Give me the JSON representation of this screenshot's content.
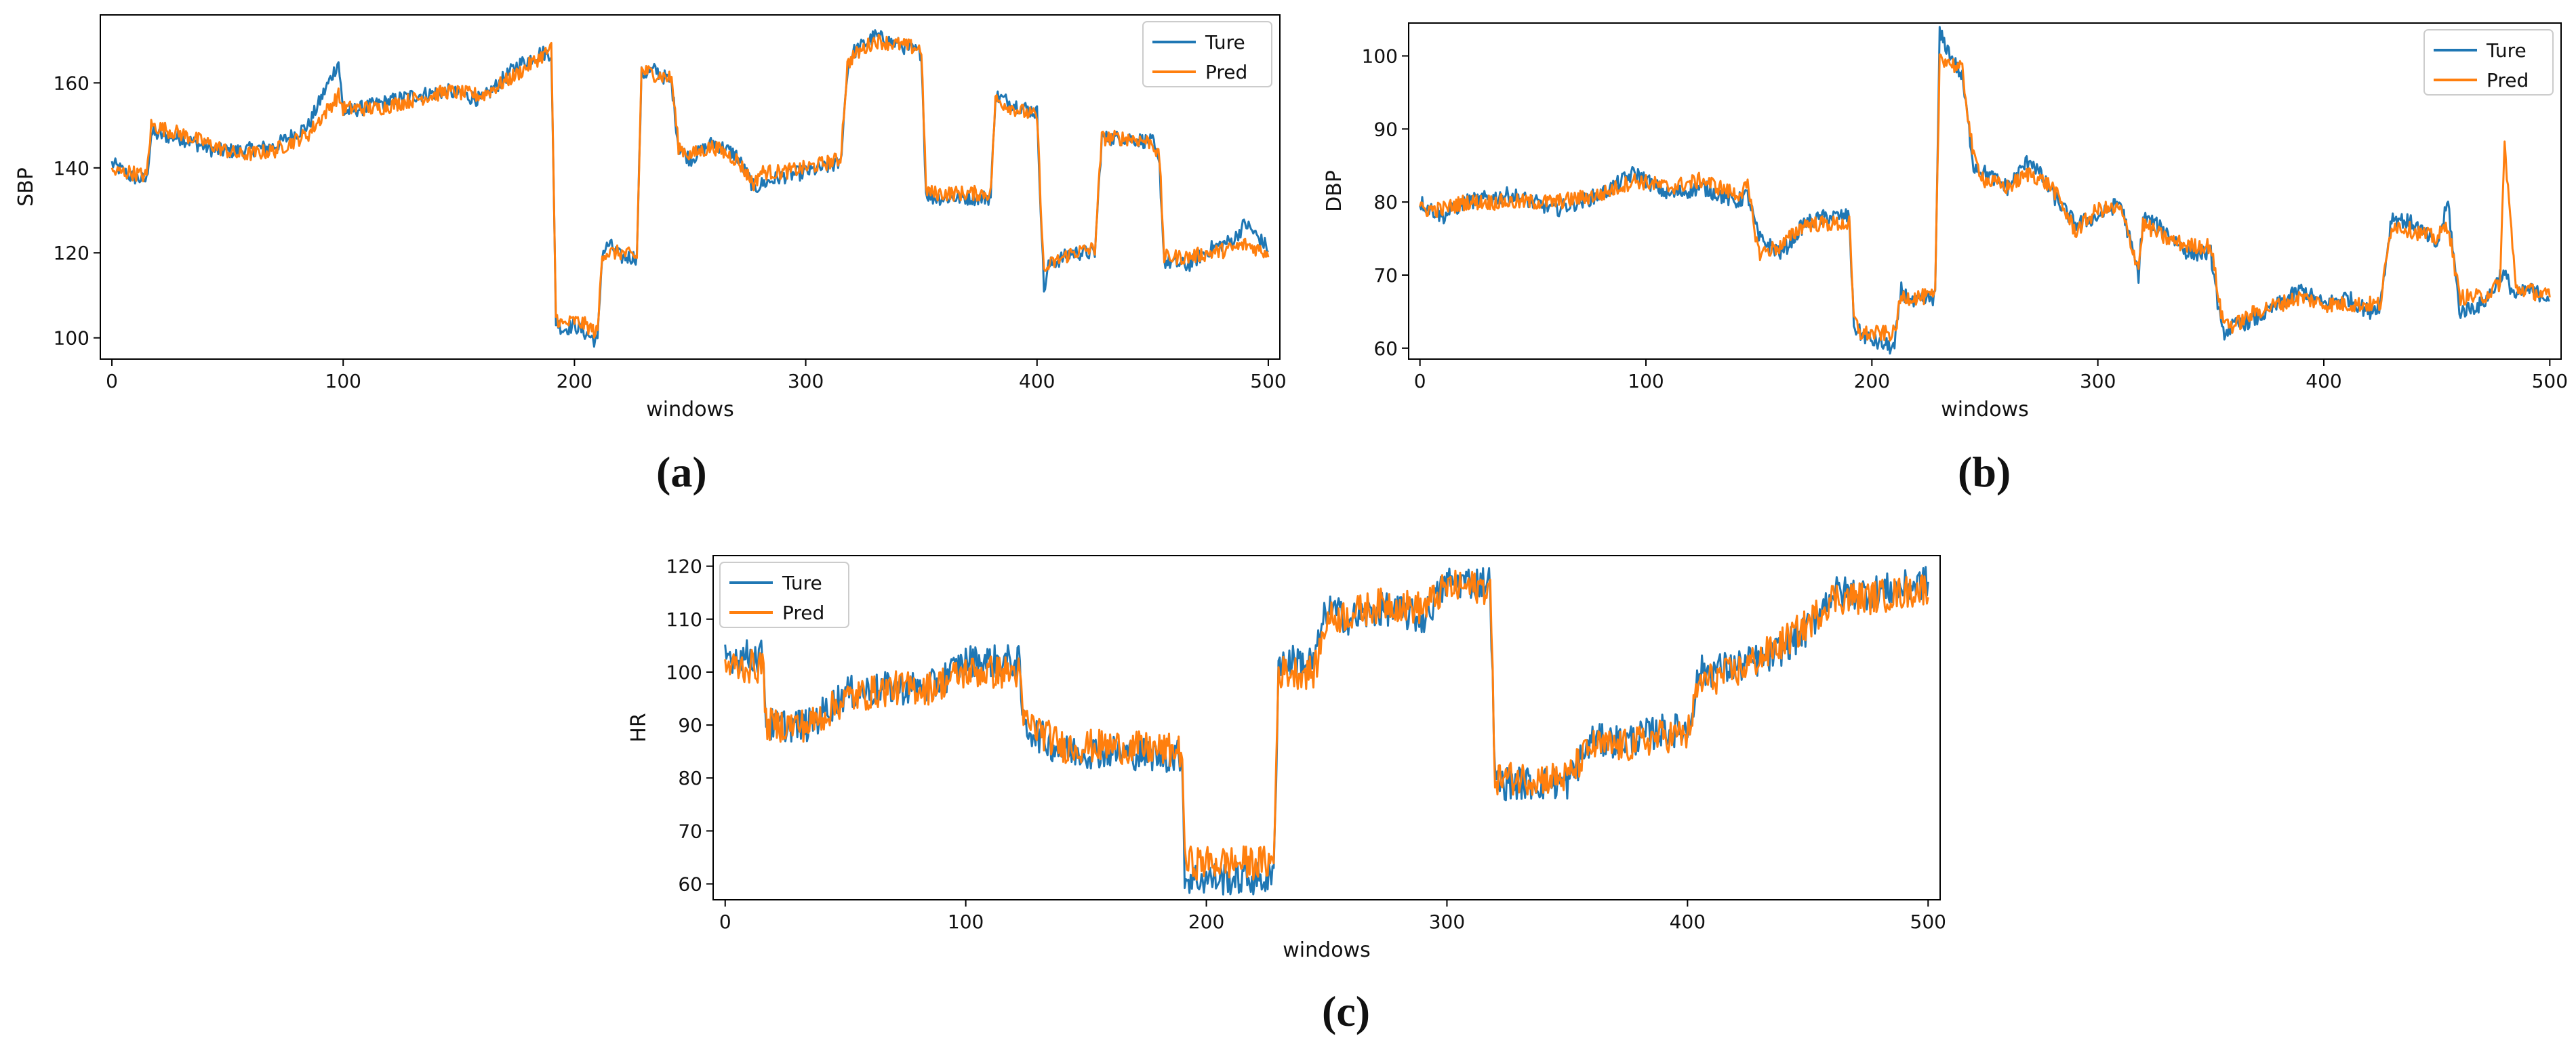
{
  "chart_data": [
    {
      "type": "line",
      "panel_label": "(a)",
      "xlabel": "windows",
      "ylabel": "SBP",
      "xlim": [
        -5,
        505
      ],
      "ylim": [
        95,
        176
      ],
      "xticks": [
        0,
        100,
        200,
        300,
        400,
        500
      ],
      "yticks": [
        100,
        120,
        140,
        160
      ],
      "legend_position": "top-right",
      "x": [
        0,
        8,
        15,
        17,
        30,
        45,
        55,
        70,
        85,
        98,
        100,
        115,
        130,
        145,
        160,
        175,
        185,
        190,
        192,
        195,
        200,
        205,
        210,
        212,
        215,
        220,
        227,
        229,
        235,
        242,
        245,
        250,
        260,
        270,
        278,
        280,
        290,
        300,
        315,
        318,
        320,
        330,
        340,
        350,
        352,
        355,
        365,
        375,
        380,
        382,
        390,
        400,
        403,
        405,
        415,
        425,
        428,
        440,
        450,
        453,
        455,
        465,
        475,
        485,
        490,
        500
      ],
      "series": [
        {
          "name": "Ture",
          "color": "#1f77b4",
          "values": [
            141,
            138,
            137,
            148,
            147,
            144,
            144,
            145,
            150,
            165,
            153,
            155,
            157,
            158,
            156,
            164,
            167,
            167,
            104,
            102,
            103,
            101,
            99,
            120,
            122,
            119,
            119,
            162,
            163,
            160,
            145,
            142,
            146,
            143,
            135,
            136,
            138,
            139,
            141,
            163,
            167,
            171,
            169,
            167,
            134,
            133,
            133,
            133,
            133,
            157,
            155,
            153,
            111,
            117,
            120,
            120,
            147,
            147,
            146,
            140,
            118,
            117,
            121,
            123,
            127,
            121
          ]
        },
        {
          "name": "Pred",
          "color": "#ff7f0e",
          "values": [
            139,
            139,
            138,
            150,
            148,
            145,
            143,
            144,
            148,
            157,
            154,
            154,
            156,
            158,
            157,
            162,
            166,
            168,
            105,
            103,
            104,
            103,
            101,
            120,
            120,
            120,
            119,
            163,
            162,
            161,
            145,
            143,
            145,
            142,
            136,
            139,
            139,
            140,
            142,
            164,
            166,
            170,
            169,
            168,
            135,
            134,
            134,
            134,
            134,
            156,
            154,
            152,
            115,
            117,
            120,
            121,
            147,
            147,
            146,
            142,
            119,
            119,
            120,
            121,
            122,
            120
          ]
        }
      ]
    },
    {
      "type": "line",
      "panel_label": "(b)",
      "xlabel": "windows",
      "ylabel": "DBP",
      "xlim": [
        -5,
        505
      ],
      "ylim": [
        58.5,
        104.5
      ],
      "xticks": [
        0,
        100,
        200,
        300,
        400,
        500
      ],
      "yticks": [
        60,
        70,
        80,
        90,
        100
      ],
      "legend_position": "top-right",
      "x": [
        0,
        10,
        20,
        40,
        60,
        80,
        95,
        110,
        125,
        140,
        145,
        150,
        160,
        170,
        180,
        190,
        192,
        195,
        200,
        210,
        213,
        218,
        228,
        230,
        235,
        240,
        245,
        250,
        260,
        270,
        280,
        290,
        300,
        310,
        318,
        320,
        330,
        340,
        350,
        355,
        360,
        370,
        380,
        390,
        400,
        410,
        420,
        425,
        430,
        440,
        450,
        455,
        460,
        470,
        475,
        478,
        480,
        485,
        490,
        500
      ],
      "series": [
        {
          "name": "Ture",
          "color": "#1f77b4",
          "values": [
            80,
            78,
            80,
            81,
            79,
            81,
            84,
            81,
            82,
            80,
            81,
            75,
            73,
            77,
            78,
            78,
            63,
            62,
            61,
            60,
            68,
            66,
            67,
            103,
            100,
            97,
            85,
            84,
            82,
            86,
            81,
            77,
            78,
            80,
            70,
            78,
            76,
            73,
            73,
            62,
            63,
            64,
            66,
            68,
            66,
            67,
            65,
            66,
            78,
            77,
            74,
            80,
            65,
            66,
            68,
            70,
            70,
            67,
            68,
            67
          ]
        },
        {
          "name": "Pred",
          "color": "#ff7f0e",
          "values": [
            79,
            79,
            80,
            80,
            80,
            81,
            83,
            82,
            83,
            81,
            82,
            73,
            74,
            77,
            77,
            77,
            64,
            62,
            62,
            62,
            67,
            67,
            67,
            100,
            99,
            98,
            86,
            83,
            82,
            84,
            82,
            76,
            79,
            79,
            71,
            77,
            75,
            74,
            74,
            64,
            63,
            65,
            66,
            67,
            66,
            66,
            66,
            66,
            77,
            76,
            75,
            77,
            67,
            67,
            68,
            69,
            88,
            68,
            68,
            67
          ]
        }
      ]
    },
    {
      "type": "line",
      "panel_label": "(c)",
      "xlabel": "windows",
      "ylabel": "HR",
      "xlim": [
        -5,
        505
      ],
      "ylim": [
        57,
        122
      ],
      "xticks": [
        0,
        100,
        200,
        300,
        400,
        500
      ],
      "yticks": [
        60,
        70,
        80,
        90,
        100,
        110,
        120
      ],
      "legend_position": "top-left",
      "x": [
        0,
        16,
        17,
        35,
        50,
        70,
        85,
        100,
        122,
        124,
        140,
        160,
        190,
        191,
        205,
        228,
        230,
        245,
        250,
        260,
        275,
        290,
        300,
        318,
        320,
        335,
        350,
        360,
        375,
        390,
        400,
        405,
        420,
        435,
        450,
        460,
        475,
        490,
        500
      ],
      "series": [
        {
          "name": "Ture",
          "color": "#1f77b4",
          "values": [
            103,
            103,
            90,
            90,
            96,
            97,
            97,
            102,
            102,
            90,
            85,
            85,
            84,
            61,
            61,
            61,
            102,
            102,
            112,
            110,
            112,
            110,
            117,
            117,
            79,
            79,
            79,
            87,
            87,
            89,
            89,
            100,
            101,
            103,
            108,
            115,
            115,
            116,
            117
          ]
        },
        {
          "name": "Pred",
          "color": "#ff7f0e",
          "values": [
            101,
            101,
            90,
            90,
            95,
            97,
            97,
            100,
            100,
            91,
            86,
            86,
            85,
            64,
            64,
            64,
            100,
            100,
            110,
            111,
            113,
            112,
            116,
            116,
            80,
            80,
            80,
            86,
            86,
            88,
            88,
            98,
            100,
            104,
            109,
            114,
            114,
            115,
            116
          ]
        }
      ]
    }
  ]
}
